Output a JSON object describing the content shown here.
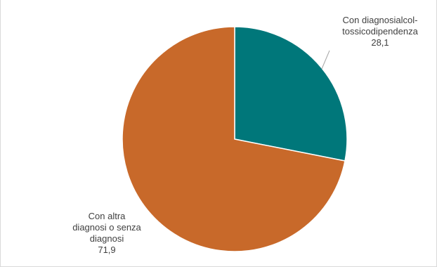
{
  "chart_data": {
    "type": "pie",
    "slices": [
      {
        "label_lines": [
          "Con diagnosialcol-",
          "tossicodipendenza"
        ],
        "value": 28.1,
        "value_text": "28,1",
        "color": "#00777a"
      },
      {
        "label_lines": [
          "Con altra",
          "diagnosi o senza",
          "diagnosi"
        ],
        "value": 71.9,
        "value_text": "71,9",
        "color": "#c8692a"
      }
    ],
    "start_angle_deg": 0,
    "direction": "clockwise",
    "slice_border_color": "#ffffff",
    "leader_line_color": "#a6a6a6"
  }
}
